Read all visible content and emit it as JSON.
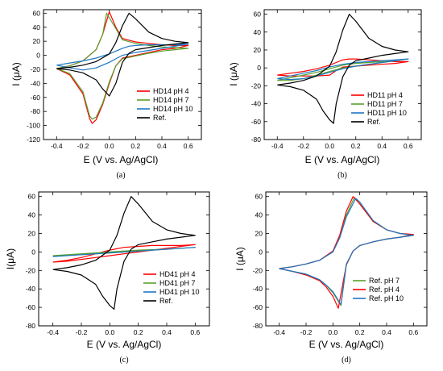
{
  "chart_data": [
    {
      "type": "line",
      "panel_label": "(a)",
      "xlabel": "E (V vs. Ag/AgCl)",
      "ylabel": "I (μA)",
      "xlim": [
        -0.5,
        0.7
      ],
      "ylim": [
        -120,
        65
      ],
      "xticks": [
        -0.4,
        -0.2,
        0.0,
        0.2,
        0.4,
        0.6
      ],
      "yticks": [
        -120,
        -100,
        -80,
        -60,
        -40,
        -20,
        0,
        20,
        40,
        60
      ],
      "xtick_labels": [
        "-0.4",
        "-0.2",
        "0.0",
        "0.2",
        "0.4",
        "0.6"
      ],
      "ytick_labels": [
        "-120",
        "-100",
        "-80",
        "-60",
        "-40",
        "-20",
        "0",
        "20",
        "40",
        "60"
      ],
      "grid": false,
      "legend_position": "bottom-right",
      "series": [
        {
          "name": "HD14 pH 4",
          "color": "#ff0000",
          "x": [
            -0.4,
            -0.3,
            -0.2,
            -0.1,
            -0.05,
            0.0,
            0.05,
            0.1,
            0.2,
            0.3,
            0.4,
            0.5,
            0.6,
            0.5,
            0.4,
            0.3,
            0.2,
            0.1,
            0.05,
            0.0,
            -0.05,
            -0.1,
            -0.13,
            -0.15,
            -0.2,
            -0.3,
            -0.4
          ],
          "y": [
            -19,
            -15,
            -8,
            8,
            30,
            62,
            40,
            24,
            19,
            17,
            15,
            14,
            14,
            10,
            8,
            4,
            0,
            -4,
            -15,
            -40,
            -70,
            -92,
            -97,
            -90,
            -55,
            -28,
            -19
          ]
        },
        {
          "name": "HD14 pH 7",
          "color": "#5aa02c",
          "x": [
            -0.4,
            -0.3,
            -0.2,
            -0.1,
            -0.05,
            -0.02,
            0.05,
            0.1,
            0.2,
            0.3,
            0.4,
            0.5,
            0.6,
            0.5,
            0.4,
            0.3,
            0.2,
            0.1,
            0.05,
            0.0,
            -0.05,
            -0.1,
            -0.13,
            -0.15,
            -0.2,
            -0.3,
            -0.4
          ],
          "y": [
            -19,
            -15,
            -8,
            8,
            30,
            60,
            38,
            22,
            17,
            14,
            12,
            11,
            10,
            8,
            6,
            3,
            -1,
            -5,
            -15,
            -38,
            -68,
            -88,
            -91,
            -86,
            -52,
            -26,
            -19
          ]
        },
        {
          "name": "HD14 pH 10",
          "color": "#1f77c4",
          "x": [
            -0.4,
            -0.3,
            -0.2,
            -0.1,
            0.0,
            0.1,
            0.15,
            0.2,
            0.3,
            0.4,
            0.5,
            0.6,
            0.5,
            0.4,
            0.3,
            0.2,
            0.1,
            0.05,
            0.0,
            -0.1,
            -0.2,
            -0.3,
            -0.4
          ],
          "y": [
            -14,
            -11,
            -8,
            -4,
            2,
            10,
            13,
            14,
            15,
            15,
            15,
            16,
            13,
            10,
            7,
            4,
            0,
            -5,
            -10,
            -18,
            -21,
            -18,
            -14
          ]
        },
        {
          "name": "Ref.",
          "color": "#000000",
          "x": [
            -0.4,
            -0.3,
            -0.2,
            -0.1,
            0.0,
            0.05,
            0.1,
            0.15,
            0.2,
            0.3,
            0.4,
            0.5,
            0.6,
            0.5,
            0.4,
            0.3,
            0.2,
            0.15,
            0.1,
            0.05,
            0.0,
            -0.05,
            -0.1,
            -0.2,
            -0.3,
            -0.4
          ],
          "y": [
            -19,
            -17,
            -14,
            -9,
            2,
            18,
            42,
            60,
            52,
            33,
            24,
            20,
            18,
            16,
            14,
            11,
            8,
            3,
            -10,
            -40,
            -58,
            -48,
            -35,
            -25,
            -21,
            -19
          ]
        }
      ]
    },
    {
      "type": "line",
      "panel_label": "(b)",
      "xlabel": "E (V vs. Ag/AgCl)",
      "ylabel": "I (μA)",
      "xlim": [
        -0.5,
        0.7
      ],
      "ylim": [
        -80,
        65
      ],
      "xticks": [
        -0.4,
        -0.2,
        0.0,
        0.2,
        0.4,
        0.6
      ],
      "yticks": [
        -80,
        -60,
        -40,
        -20,
        0,
        20,
        40,
        60
      ],
      "xtick_labels": [
        "-0.4",
        "-0.2",
        "0.0",
        "0.2",
        "0.4",
        "0.6"
      ],
      "ytick_labels": [
        "-80",
        "-60",
        "-40",
        "-20",
        "0",
        "20",
        "40",
        "60"
      ],
      "grid": false,
      "legend_position": "bottom-right",
      "series": [
        {
          "name": "HD11 pH 4",
          "color": "#ff0000",
          "x": [
            -0.4,
            -0.3,
            -0.2,
            -0.1,
            0.0,
            0.05,
            0.1,
            0.15,
            0.2,
            0.3,
            0.4,
            0.5,
            0.6,
            0.5,
            0.4,
            0.3,
            0.2,
            0.1,
            0.05,
            0.0,
            -0.1,
            -0.2,
            -0.3,
            -0.4
          ],
          "y": [
            -8,
            -6,
            -4,
            -1,
            3,
            6,
            9,
            10,
            10,
            9,
            8,
            7,
            7,
            5,
            4,
            3,
            2,
            1,
            -3,
            -8,
            -9,
            -9,
            -9,
            -8
          ]
        },
        {
          "name": "HD11 pH 7",
          "color": "#5aa02c",
          "x": [
            -0.4,
            -0.3,
            -0.2,
            -0.1,
            0.0,
            0.1,
            0.2,
            0.3,
            0.4,
            0.5,
            0.6,
            0.5,
            0.4,
            0.3,
            0.2,
            0.1,
            0.0,
            -0.1,
            -0.2,
            -0.3,
            -0.4
          ],
          "y": [
            -14,
            -11,
            -8,
            -5,
            -1,
            3,
            5,
            6,
            7,
            8,
            10,
            8,
            6,
            4,
            2,
            0,
            -4,
            -8,
            -12,
            -14,
            -14
          ]
        },
        {
          "name": "HD11 pH 10",
          "color": "#1f77c4",
          "x": [
            -0.4,
            -0.3,
            -0.2,
            -0.1,
            0.0,
            0.1,
            0.2,
            0.3,
            0.4,
            0.5,
            0.6,
            0.5,
            0.4,
            0.3,
            0.2,
            0.1,
            0.0,
            -0.1,
            -0.2,
            -0.3,
            -0.4
          ],
          "y": [
            -12,
            -9,
            -6,
            -3,
            1,
            4,
            6,
            7,
            8,
            9,
            10,
            8,
            6,
            4,
            2,
            -1,
            -5,
            -9,
            -12,
            -13,
            -12
          ]
        },
        {
          "name": "Ref.",
          "color": "#000000",
          "x": [
            -0.4,
            -0.3,
            -0.2,
            -0.1,
            0.0,
            0.05,
            0.1,
            0.15,
            0.2,
            0.3,
            0.4,
            0.5,
            0.6,
            0.5,
            0.4,
            0.3,
            0.2,
            0.15,
            0.1,
            0.05,
            0.03,
            0.0,
            -0.05,
            -0.1,
            -0.2,
            -0.3,
            -0.4
          ],
          "y": [
            -19,
            -17,
            -14,
            -9,
            2,
            18,
            42,
            60,
            52,
            33,
            24,
            20,
            18,
            16,
            14,
            11,
            8,
            3,
            -10,
            -40,
            -62,
            -58,
            -48,
            -35,
            -25,
            -21,
            -19
          ]
        }
      ]
    },
    {
      "type": "line",
      "panel_label": "(c)",
      "xlabel": "E (V vs. Ag/AgCl)",
      "ylabel": "I(μA)",
      "xlim": [
        -0.5,
        0.7
      ],
      "ylim": [
        -80,
        65
      ],
      "xticks": [
        -0.4,
        -0.2,
        0.0,
        0.2,
        0.4,
        0.6
      ],
      "yticks": [
        -80,
        -60,
        -40,
        -20,
        0,
        20,
        40,
        60
      ],
      "xtick_labels": [
        "-0.4",
        "-0.2",
        "0.0",
        "0.2",
        "0.4",
        "0.6"
      ],
      "ytick_labels": [
        "-80",
        "-60",
        "-40",
        "-20",
        "0",
        "20",
        "40",
        "60"
      ],
      "grid": false,
      "legend_position": "bottom-right",
      "series": [
        {
          "name": "HD41 pH 4",
          "color": "#ff0000",
          "x": [
            -0.4,
            -0.3,
            -0.2,
            -0.1,
            0.0,
            0.1,
            0.2,
            0.3,
            0.4,
            0.5,
            0.6,
            0.5,
            0.4,
            0.3,
            0.2,
            0.1,
            0.0,
            -0.1,
            -0.2,
            -0.3,
            -0.4
          ],
          "y": [
            -11,
            -9,
            -6,
            -2,
            2,
            5,
            6,
            7,
            7,
            7,
            8,
            6,
            4,
            2,
            0,
            -2,
            -4,
            -6,
            -8,
            -10,
            -11
          ]
        },
        {
          "name": "HD41 pH 7",
          "color": "#5aa02c",
          "x": [
            -0.4,
            -0.2,
            0.0,
            0.2,
            0.4,
            0.6,
            0.4,
            0.2,
            0.0,
            -0.2,
            -0.4
          ],
          "y": [
            -4,
            -2,
            0,
            2,
            3,
            5,
            3,
            1,
            -1,
            -3,
            -4
          ]
        },
        {
          "name": "HD41 pH 10",
          "color": "#1f77c4",
          "x": [
            -0.4,
            -0.2,
            0.0,
            0.2,
            0.4,
            0.6,
            0.4,
            0.2,
            0.0,
            -0.2,
            -0.4
          ],
          "y": [
            -5,
            -3,
            -1,
            1,
            3,
            5,
            3,
            1,
            -1,
            -3,
            -5
          ]
        },
        {
          "name": "Ref.",
          "color": "#000000",
          "x": [
            -0.4,
            -0.3,
            -0.2,
            -0.1,
            0.0,
            0.05,
            0.1,
            0.15,
            0.2,
            0.3,
            0.4,
            0.5,
            0.6,
            0.5,
            0.4,
            0.3,
            0.2,
            0.15,
            0.1,
            0.05,
            0.03,
            0.0,
            -0.05,
            -0.1,
            -0.2,
            -0.3,
            -0.4
          ],
          "y": [
            -19,
            -17,
            -14,
            -9,
            2,
            18,
            42,
            60,
            52,
            33,
            24,
            20,
            18,
            16,
            14,
            11,
            8,
            3,
            -10,
            -40,
            -62,
            -58,
            -48,
            -35,
            -25,
            -21,
            -19
          ]
        }
      ]
    },
    {
      "type": "line",
      "panel_label": "(d)",
      "xlabel": "E (V vs. Ag/AgCl)",
      "ylabel": "I (μA)",
      "xlim": [
        -0.5,
        0.7
      ],
      "ylim": [
        -80,
        65
      ],
      "xticks": [
        -0.4,
        -0.2,
        0.0,
        0.2,
        0.4,
        0.6
      ],
      "yticks": [
        -80,
        -60,
        -40,
        -20,
        0,
        20,
        40,
        60
      ],
      "xtick_labels": [
        "-0.4",
        "-0.2",
        "0.0",
        "0.2",
        "0.4",
        "0.6"
      ],
      "ytick_labels": [
        "-80",
        "-60",
        "-40",
        "-20",
        "0",
        "20",
        "40",
        "60"
      ],
      "grid": false,
      "legend_position": "bottom-right",
      "series": [
        {
          "name": "Ref. pH 7",
          "color": "#5aa02c",
          "x": [
            -0.4,
            -0.3,
            -0.2,
            -0.1,
            0.0,
            0.05,
            0.1,
            0.16,
            0.2,
            0.3,
            0.4,
            0.5,
            0.6,
            0.5,
            0.4,
            0.3,
            0.2,
            0.15,
            0.1,
            0.06,
            0.0,
            -0.05,
            -0.1,
            -0.2,
            -0.3,
            -0.4
          ],
          "y": [
            -18,
            -16,
            -13,
            -9,
            0,
            16,
            40,
            59,
            52,
            33,
            24,
            20,
            18,
            16,
            14,
            11,
            7,
            1,
            -14,
            -58,
            -44,
            -36,
            -30,
            -24,
            -21,
            -18
          ]
        },
        {
          "name": "Ref. pH 4",
          "color": "#ff0000",
          "x": [
            -0.4,
            -0.3,
            -0.2,
            -0.1,
            0.0,
            0.05,
            0.1,
            0.15,
            0.2,
            0.3,
            0.4,
            0.5,
            0.6,
            0.5,
            0.4,
            0.3,
            0.2,
            0.15,
            0.1,
            0.04,
            0.0,
            -0.05,
            -0.1,
            -0.2,
            -0.3,
            -0.4
          ],
          "y": [
            -18,
            -16,
            -13,
            -9,
            1,
            18,
            44,
            60,
            52,
            33,
            24,
            20,
            19,
            16,
            14,
            11,
            7,
            1,
            -14,
            -61,
            -48,
            -38,
            -31,
            -25,
            -21,
            -18
          ]
        },
        {
          "name": "Ref. pH 10",
          "color": "#1f77c4",
          "x": [
            -0.4,
            -0.3,
            -0.2,
            -0.1,
            0.0,
            0.05,
            0.1,
            0.17,
            0.2,
            0.3,
            0.4,
            0.5,
            0.6,
            0.5,
            0.4,
            0.3,
            0.2,
            0.15,
            0.1,
            0.06,
            0.0,
            -0.05,
            -0.1,
            -0.2,
            -0.3,
            -0.4
          ],
          "y": [
            -18,
            -16,
            -13,
            -9,
            0,
            15,
            38,
            58,
            54,
            34,
            24,
            20,
            18,
            16,
            14,
            11,
            7,
            1,
            -13,
            -57,
            -43,
            -36,
            -30,
            -24,
            -21,
            -18
          ]
        }
      ]
    }
  ]
}
